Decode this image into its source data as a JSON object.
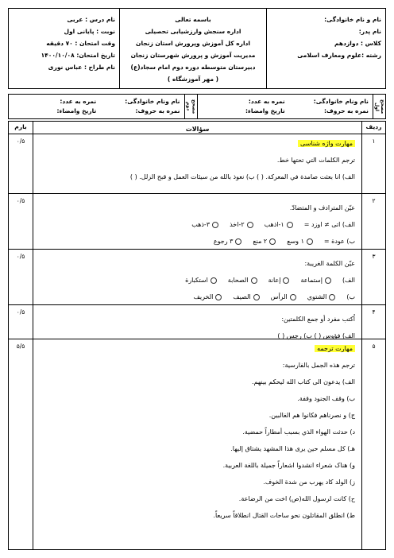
{
  "header": {
    "right": [
      "نام و نام خانوادگی:",
      "نام پدر:",
      "کلاس : دوازدهم",
      "رشته :علوم ومعارف اسلامی"
    ],
    "center": [
      "باسمه تعالی",
      "اداره سنجش وارزشیابی تحصیلی",
      "اداره کل آموزش وپرورش استان زنجان",
      "مدیریت آموزش و پرورش شهرستان زنجان",
      "دبیرستان متوسطه دوره دوم امام سجاد(ع)",
      "( مهر آموزشگاه )"
    ],
    "left": [
      "نام درس : عربی",
      "نوبت : پایانی اول",
      "وقت امتحان : ۷۰ دقیقه",
      "تاریخ امتحان: ۱۴۰۰/۱۰/۰۸",
      "نام طراح : عباس نوری"
    ]
  },
  "graders": [
    {
      "label": "مصحح اول",
      "name": "نام ونام خانوادگی:",
      "score_number": "نمره به عدد:",
      "score_words": "نمره به حروف:",
      "date_sign": "تاریخ وامضاء:"
    },
    {
      "label": "مصحح دوم",
      "name": "نام ونام خانوادگی:",
      "score_number": "نمره به عدد:",
      "score_words": "نمره به حروف:",
      "date_sign": "تاریخ وامضاء:"
    }
  ],
  "table": {
    "columns": [
      "ردیف",
      "سؤالات",
      "بارم"
    ],
    "rows": [
      {
        "number": "۱",
        "heading": "مهارت واژه شناسی",
        "instruction": "ترجم الکلمات التي تحتها خط.",
        "lines": [
          "الف) انا بعثت صامدة في المعرکة. (        )        ب) نعوذ بالله من سیئات العمل و قبح الزلل. (        )"
        ],
        "score": "۰/۵"
      },
      {
        "number": "۲",
        "instruction": "عیّن المترادف و المتضادّ.",
        "options": [
          {
            "prefix": "الف) اتی ≠ اوزد =",
            "items": [
              "۱-اذهب",
              "۲-اخذ",
              "۳-ذهب"
            ]
          },
          {
            "prefix": "ب) عودة =",
            "items": [
              "۱ وسع",
              "۲ منع",
              "۳ رجوع"
            ]
          }
        ],
        "score": "۰/۵"
      },
      {
        "number": "۳",
        "instruction": "عیّن الکلمة الغریبة:",
        "options": [
          {
            "prefix": "الف)",
            "items": [
              "إستماعة",
              "إعانة",
              "الصحابة",
              "استکبارة"
            ]
          },
          {
            "prefix": "ب)",
            "items": [
              "الشتوي",
              "الرأس",
              "الصیف",
              "الخریف"
            ]
          }
        ],
        "score": "۰/۵"
      },
      {
        "number": "۴",
        "instruction": "اُکتب مفرد أو جمع الکلمتین:",
        "lines": [
          "الف) فؤوس (        )        ب) رجس (        )"
        ],
        "score": "۰/۵"
      },
      {
        "number": "۵",
        "heading": "مهارت ترجمه",
        "instruction": "ترجم هذه الجمل بالفارسیة:",
        "lines": [
          "الف) یدعون الی کتاب الله لیحکم بینهم.",
          "ب) وقف الجنود وقفة.",
          "ج) و نصرناهم فکانوا هم الغالبین.",
          "د) حدثت الهواء الذي بسبب أمطاراً حمضیة.",
          "هـ) کل مسلم حین یری هذا المشهد یشتاق إلیها.",
          "و) هناک شعراء انشدوا اشعاراً جمیلة باللغة العربیة.",
          "ز) الولد کاد یهرب من شدة الخوف.",
          "ح) کانت لرسول الله(ص) اخت من الرضاعة.",
          "ط) انطلق المقاتلون نحو ساحات القتال انطلاقاً سریعاً."
        ],
        "score": "۵/۵"
      }
    ]
  }
}
